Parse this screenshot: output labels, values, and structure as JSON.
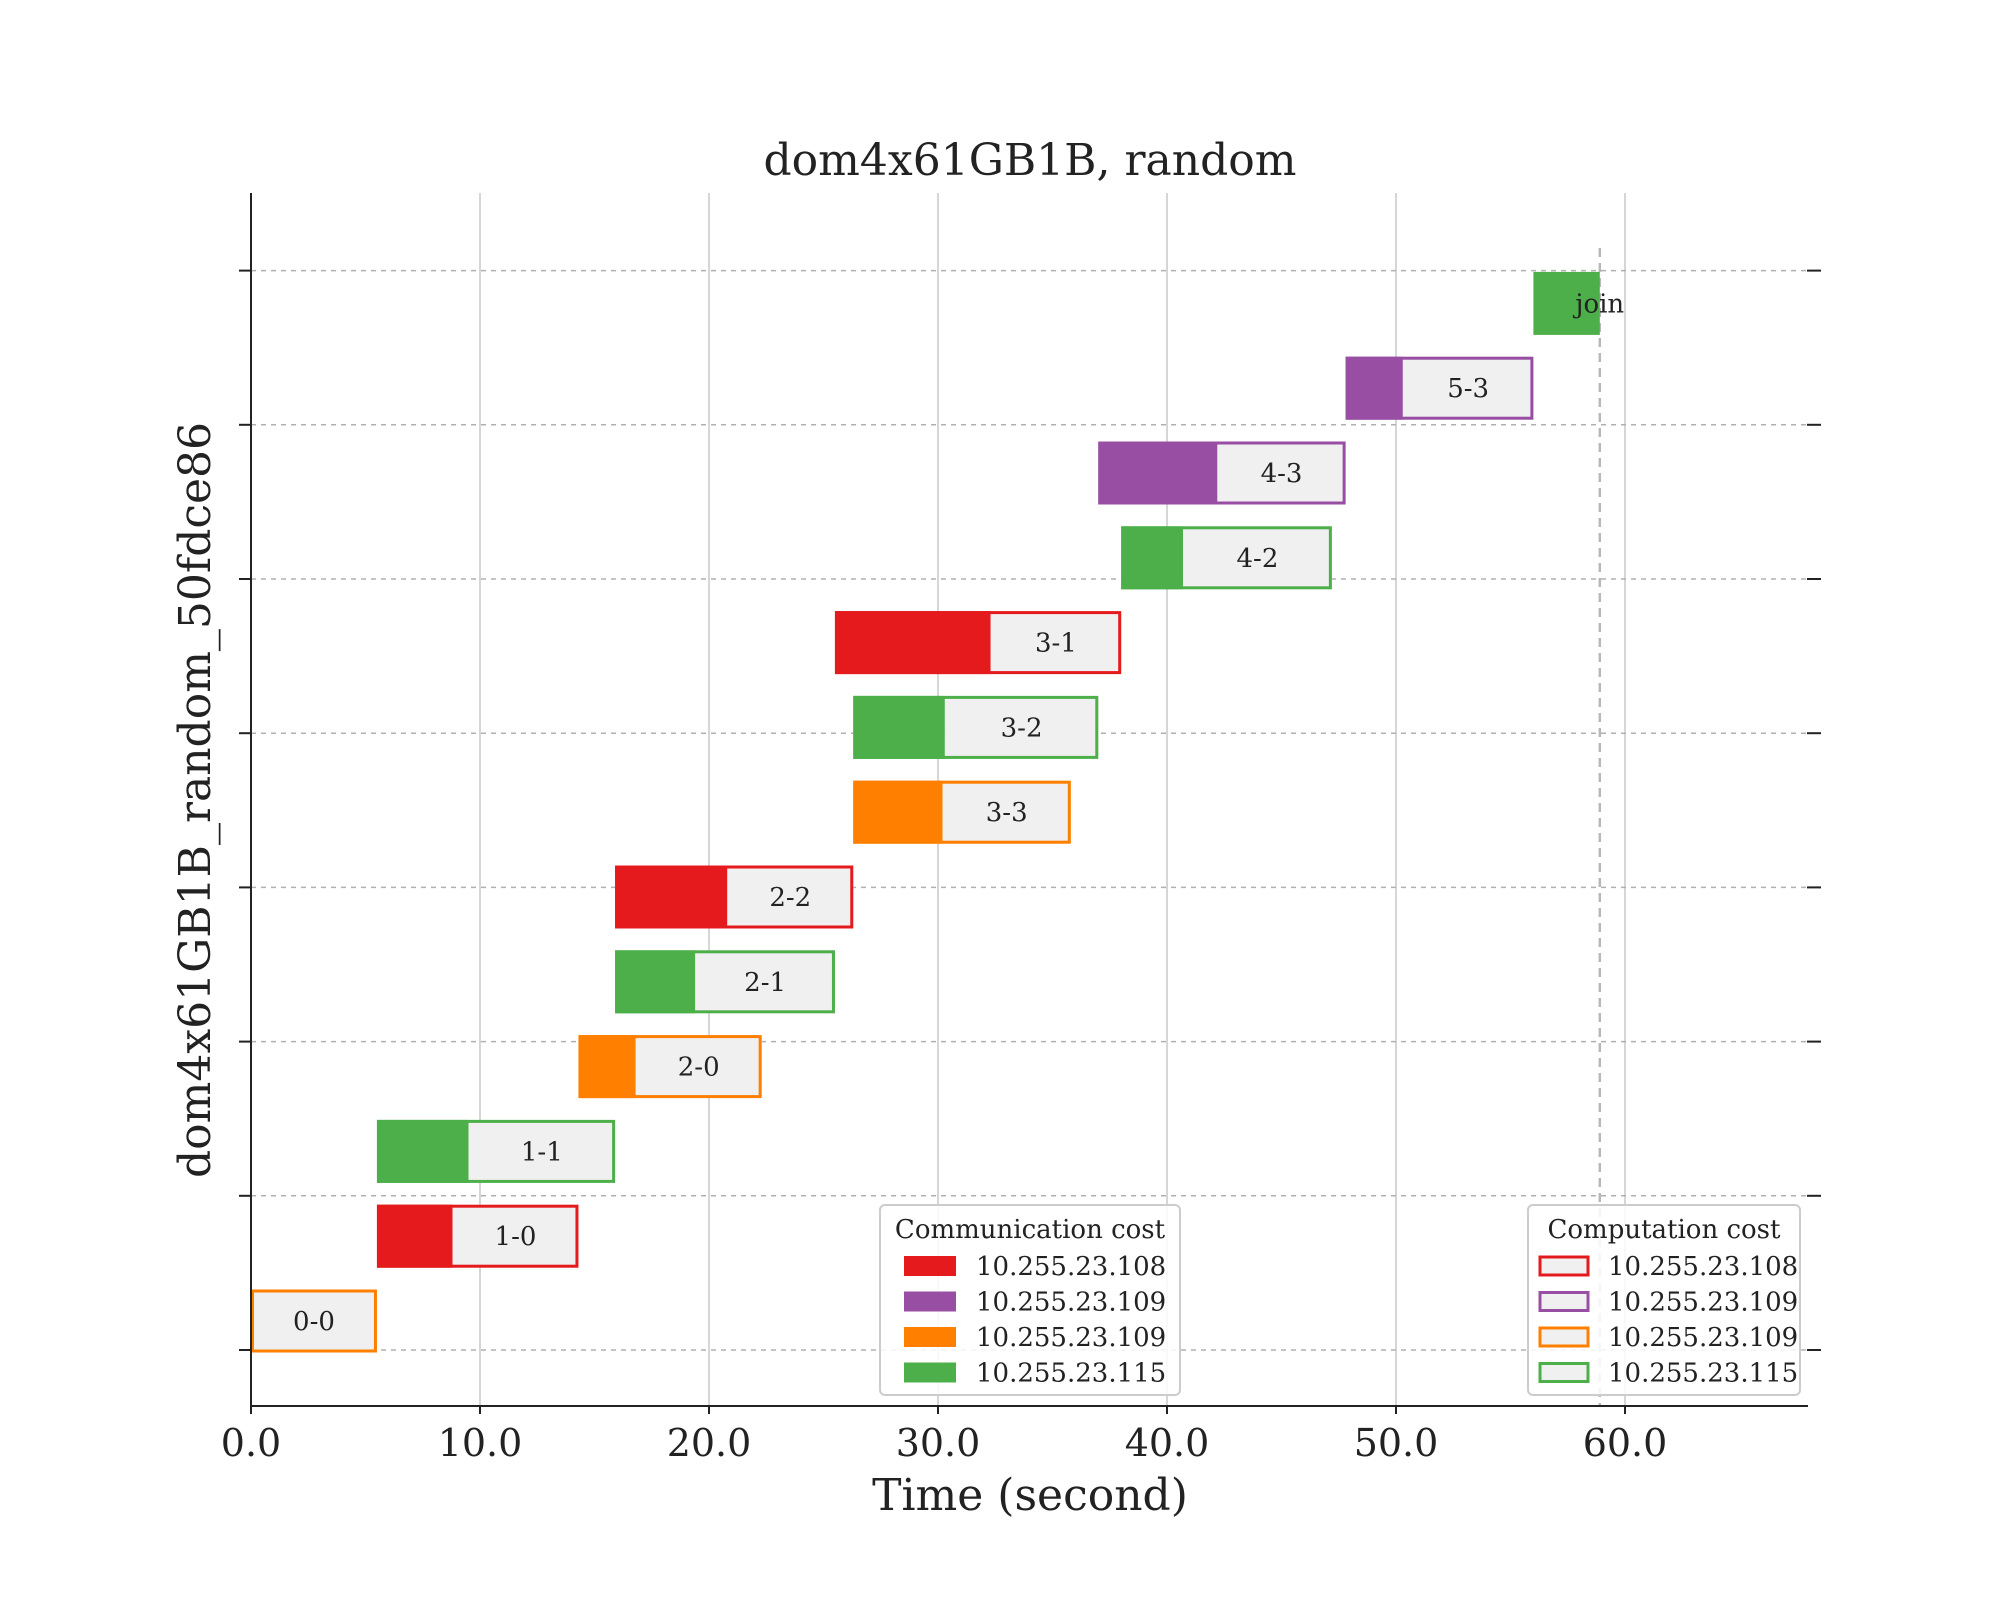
{
  "chart_data": {
    "type": "gantt",
    "title": "dom4x61GB1B, random",
    "xlabel": "Time (second)",
    "ylabel": "dom4x61GB1B_random_50fdce86",
    "xlim": [
      0,
      68
    ],
    "xticks": [
      "0.0",
      "10.0",
      "20.0",
      "30.0",
      "40.0",
      "50.0",
      "60.0"
    ],
    "xtick_values": [
      0,
      10,
      20,
      30,
      40,
      50,
      60
    ],
    "x_grid": true,
    "y_grid": "dashed",
    "y_tick_count": 8,
    "end_marker": 58.9,
    "tasks": [
      {
        "label": "0-0",
        "start": 0.0,
        "comm_end": 0.0,
        "end": 5.5,
        "comm_color": "#ff7f00",
        "comp_color": "#ff7f00",
        "row": 0
      },
      {
        "label": "1-0",
        "start": 5.5,
        "comm_end": 8.8,
        "end": 14.3,
        "comm_color": "#e41a1c",
        "comp_color": "#e41a1c",
        "row": 1
      },
      {
        "label": "1-1",
        "start": 5.5,
        "comm_end": 9.5,
        "end": 15.9,
        "comm_color": "#4daf4a",
        "comp_color": "#4daf4a",
        "row": 2
      },
      {
        "label": "2-0",
        "start": 14.3,
        "comm_end": 16.8,
        "end": 22.3,
        "comm_color": "#ff7f00",
        "comp_color": "#ff7f00",
        "row": 3
      },
      {
        "label": "2-1",
        "start": 15.9,
        "comm_end": 19.4,
        "end": 25.5,
        "comm_color": "#4daf4a",
        "comp_color": "#4daf4a",
        "row": 4
      },
      {
        "label": "2-2",
        "start": 15.9,
        "comm_end": 20.8,
        "end": 26.3,
        "comm_color": "#e41a1c",
        "comp_color": "#e41a1c",
        "row": 5
      },
      {
        "label": "3-3",
        "start": 26.3,
        "comm_end": 30.2,
        "end": 35.8,
        "comm_color": "#ff7f00",
        "comp_color": "#ff7f00",
        "row": 6
      },
      {
        "label": "3-2",
        "start": 26.3,
        "comm_end": 30.3,
        "end": 37.0,
        "comm_color": "#4daf4a",
        "comp_color": "#4daf4a",
        "row": 7
      },
      {
        "label": "3-1",
        "start": 25.5,
        "comm_end": 32.3,
        "end": 38.0,
        "comm_color": "#e41a1c",
        "comp_color": "#e41a1c",
        "row": 8
      },
      {
        "label": "4-2",
        "start": 38.0,
        "comm_end": 40.7,
        "end": 47.2,
        "comm_color": "#4daf4a",
        "comp_color": "#4daf4a",
        "row": 9
      },
      {
        "label": "4-3",
        "start": 37.0,
        "comm_end": 42.2,
        "end": 47.8,
        "comm_color": "#984ea3",
        "comp_color": "#984ea3",
        "row": 10
      },
      {
        "label": "5-3",
        "start": 47.8,
        "comm_end": 50.3,
        "end": 56.0,
        "comm_color": "#984ea3",
        "comp_color": "#984ea3",
        "row": 11
      },
      {
        "label": "join",
        "start": 56.0,
        "comm_end": 58.9,
        "end": 58.9,
        "comm_color": "#4daf4a",
        "comp_color": "#4daf4a",
        "row": 12
      }
    ],
    "legends": [
      {
        "title": "Communication cost",
        "style": "filled",
        "placement": "lower-center",
        "entries": [
          {
            "label": "10.255.23.108",
            "color": "#e41a1c"
          },
          {
            "label": "10.255.23.109",
            "color": "#984ea3"
          },
          {
            "label": "10.255.23.109",
            "color": "#ff7f00"
          },
          {
            "label": "10.255.23.115",
            "color": "#4daf4a"
          }
        ]
      },
      {
        "title": "Computation cost",
        "style": "outline",
        "placement": "lower-right",
        "entries": [
          {
            "label": "10.255.23.108",
            "color": "#e41a1c"
          },
          {
            "label": "10.255.23.109",
            "color": "#984ea3"
          },
          {
            "label": "10.255.23.109",
            "color": "#ff7f00"
          },
          {
            "label": "10.255.23.115",
            "color": "#4daf4a"
          }
        ]
      }
    ]
  }
}
